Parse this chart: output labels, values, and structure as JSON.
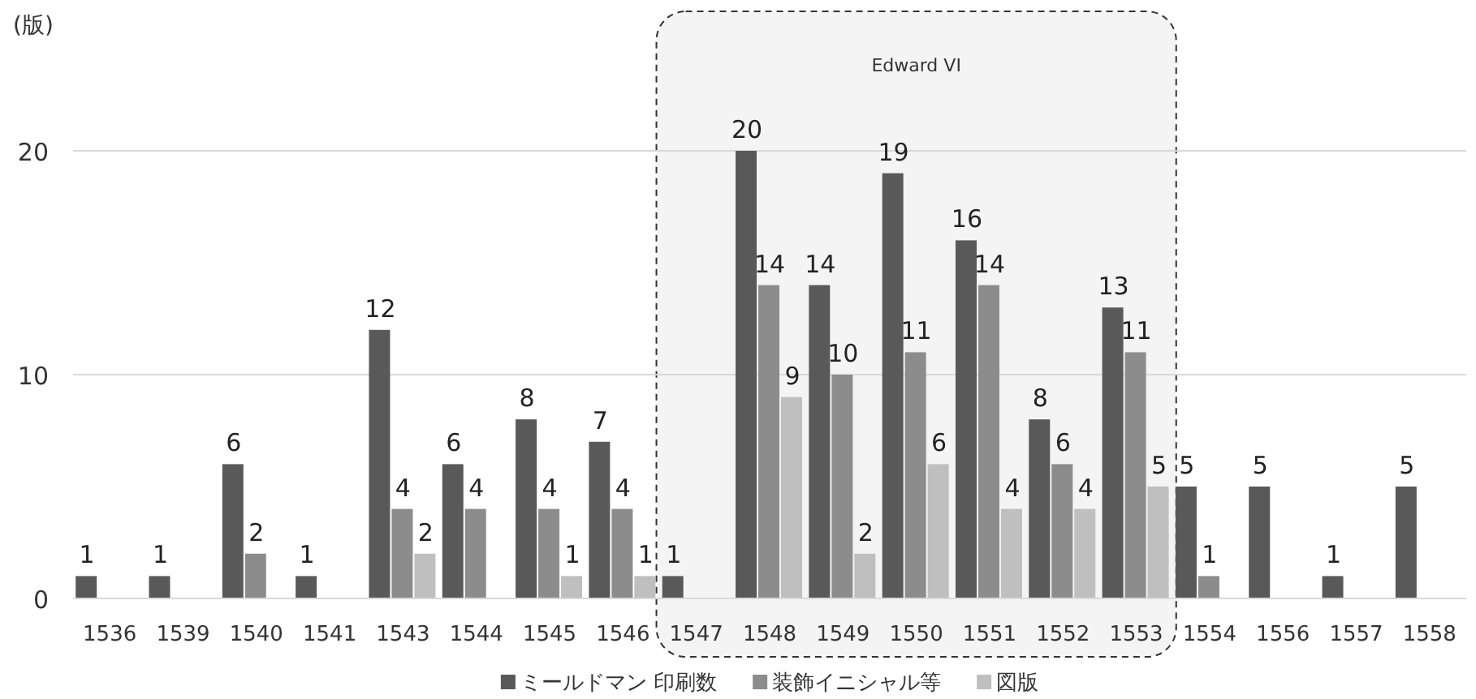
{
  "chart_data": {
    "type": "bar",
    "ylabel": "(版)",
    "categories": [
      "1536",
      "1539",
      "1540",
      "1541",
      "1543",
      "1544",
      "1545",
      "1546",
      "1547",
      "1548",
      "1549",
      "1550",
      "1551",
      "1552",
      "1553",
      "1554",
      "1556",
      "1557",
      "1558"
    ],
    "series": [
      {
        "name": "ミールドマン 印刷数",
        "color": "#595959",
        "values": [
          1,
          1,
          6,
          1,
          12,
          6,
          8,
          7,
          1,
          20,
          14,
          19,
          16,
          8,
          13,
          5,
          5,
          1,
          5
        ]
      },
      {
        "name": "装飾イニシャル等",
        "color": "#8c8c8c",
        "values": [
          null,
          null,
          2,
          null,
          4,
          4,
          4,
          4,
          null,
          14,
          10,
          11,
          14,
          6,
          11,
          1,
          null,
          null,
          null
        ]
      },
      {
        "name": "図版",
        "color": "#bfbfbf",
        "values": [
          null,
          null,
          null,
          null,
          2,
          null,
          1,
          1,
          null,
          9,
          2,
          6,
          4,
          4,
          5,
          null,
          null,
          null,
          null
        ]
      }
    ],
    "ylim": [
      0,
      20
    ],
    "yticks": [
      0,
      10,
      20
    ],
    "grid": "y",
    "legend": "bottom",
    "data_labels": true,
    "bands": [
      {
        "axis": "x",
        "from": "1547",
        "to": "1553",
        "label": "Edward VI",
        "color": "#f4f4f4"
      }
    ]
  }
}
